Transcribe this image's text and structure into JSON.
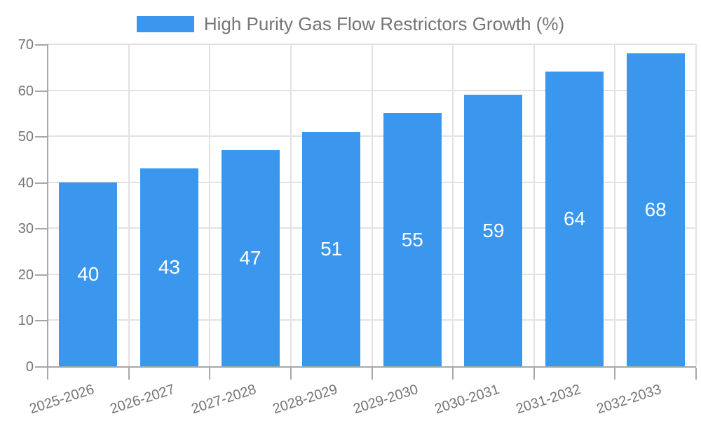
{
  "chart_data": {
    "type": "bar",
    "title": "High Purity Gas Flow Restrictors Growth (%)",
    "categories": [
      "2025-2026",
      "2026-2027",
      "2027-2028",
      "2028-2029",
      "2029-2030",
      "2030-2031",
      "2031-2032",
      "2032-2033"
    ],
    "values": [
      40,
      43,
      47,
      51,
      55,
      59,
      64,
      68
    ],
    "xlabel": "",
    "ylabel": "",
    "ylim": [
      0,
      70
    ],
    "yticks": [
      0,
      10,
      20,
      30,
      40,
      50,
      60,
      70
    ],
    "grid": true,
    "legend_position": "top",
    "colors": {
      "bar": "#3B97EE",
      "axis": "#A8A8A8",
      "grid": "#E2E2E2",
      "tick_label": "#757575",
      "value_label": "#FFFFFF",
      "background": "#FFFFFF"
    }
  }
}
